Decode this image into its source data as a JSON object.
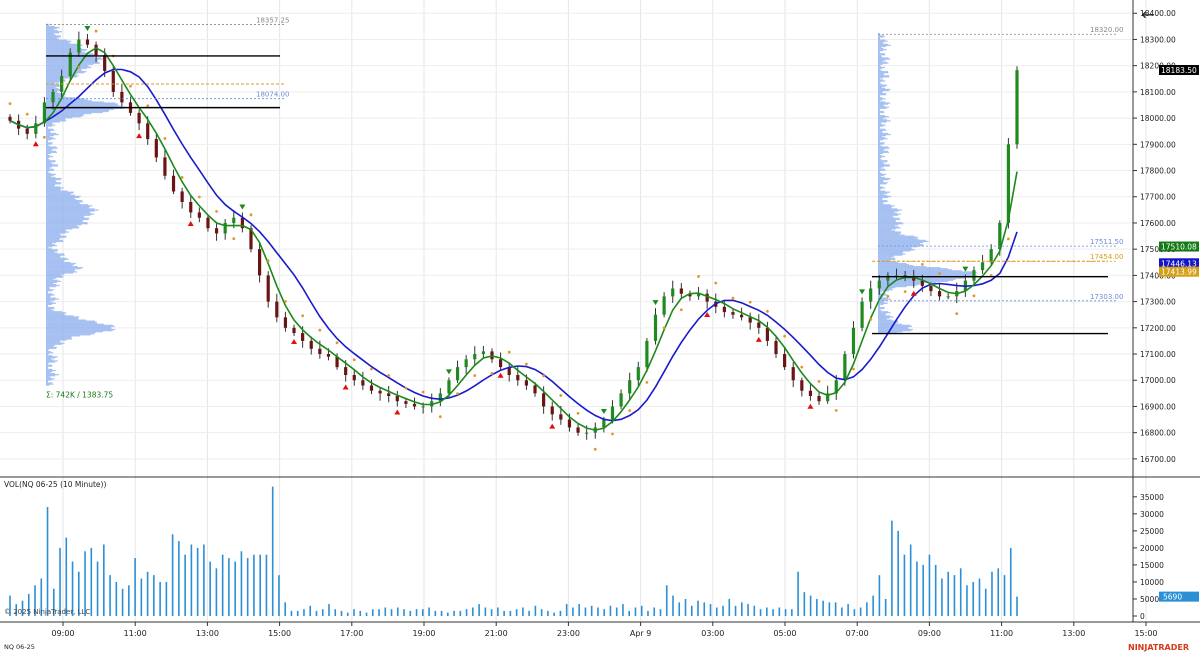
{
  "window": {
    "back_icon": "arrow-left-icon"
  },
  "footer": {
    "symbol": "NQ 06-25",
    "brand": "NINJATRADER",
    "copyright": "© 2025 NinjaTrader, LLC"
  },
  "volume_panel": {
    "title": "VOL(NQ 06-25 (10 Minute))",
    "last_volume": "5690"
  },
  "price_labels": {
    "last": "18183.50",
    "green": "17510.08",
    "blue": "17446.13",
    "orange": "17413.99"
  },
  "colors": {
    "up": "#1f8a1f",
    "down": "#6b1414",
    "ma_green": "#1a8a1a",
    "ma_blue": "#1a1acc",
    "psar": "#e0962a",
    "volume": "#2b8fd6",
    "profile": "#8fb0ee",
    "last_bg": "#000000",
    "green_bg": "#157a15",
    "blue_bg": "#1515c8",
    "orange_bg": "#d4a017"
  },
  "chart_data": [
    {
      "type": "candlestick",
      "title": "",
      "ylabel": "",
      "ylim": [
        16650,
        18420
      ],
      "y_ticks": [
        "18400.00",
        "18300.00",
        "18200.00",
        "18100.00",
        "18000.00",
        "17900.00",
        "17800.00",
        "17700.00",
        "17600.00",
        "17500.00",
        "17400.00",
        "17300.00",
        "17200.00",
        "17100.00",
        "17000.00",
        "16900.00",
        "16800.00",
        "16700.00"
      ],
      "x_ticks": [
        "09:00",
        "11:00",
        "13:00",
        "15:00",
        "17:00",
        "19:00",
        "21:00",
        "23:00",
        "Apr 9",
        "03:00",
        "05:00",
        "07:00",
        "09:00",
        "11:00",
        "13:00",
        "15:00"
      ],
      "profile_labels": [
        {
          "text": "18357.25",
          "value": 18357.25
        },
        {
          "text": "18074.00",
          "value": 18074.0
        },
        {
          "text": "17511.50",
          "value": 17511.5
        },
        {
          "text": "17454.00",
          "value": 17454.0
        },
        {
          "text": "17303.00",
          "value": 17303.0
        },
        {
          "text": "18320.00",
          "value": 18320.0
        }
      ],
      "profile_summary": "Σ: 742K / 1383.75",
      "key_lines": [
        18237,
        18040,
        17395,
        17178
      ],
      "series": [
        {
          "name": "",
          "close_path": [
            17990,
            17960,
            17940,
            17980,
            18060,
            18100,
            18160,
            18250,
            18300,
            18280,
            18240,
            18180,
            18100,
            18060,
            18020,
            17980,
            17920,
            17850,
            17780,
            17720,
            17680,
            17640,
            17620,
            17580,
            17560,
            17600,
            17620,
            17580,
            17500,
            17400,
            17300,
            17240,
            17200,
            17180,
            17150,
            17120,
            17100,
            17090,
            17050,
            17020,
            17000,
            16980,
            16960,
            16950,
            16940,
            16920,
            16910,
            16900,
            16900,
            16920,
            16950,
            17000,
            17050,
            17080,
            17100,
            17110,
            17080,
            17050,
            17020,
            17000,
            16980,
            16950,
            16900,
            16870,
            16850,
            16820,
            16800,
            16800,
            16820,
            16850,
            16900,
            16950,
            17000,
            17050,
            17150,
            17250,
            17320,
            17350,
            17330,
            17320,
            17330,
            17300,
            17280,
            17260,
            17250,
            17240,
            17220,
            17200,
            17150,
            17100,
            17050,
            17000,
            16960,
            16940,
            16920,
            16950,
            17000,
            17100,
            17200,
            17300,
            17350,
            17380,
            17400,
            17400,
            17390,
            17380,
            17360,
            17340,
            17320,
            17320,
            17340,
            17380,
            17420,
            17450,
            17500,
            17600,
            17900,
            18183
          ]
        }
      ]
    },
    {
      "type": "bar",
      "title": "VOL(NQ 06-25 (10 Minute))",
      "ylim": [
        0,
        37000
      ],
      "y_ticks": [
        "35000",
        "30000",
        "25000",
        "20000",
        "15000",
        "10000",
        "5000",
        "0"
      ],
      "values": [
        6000,
        3500,
        4500,
        6500,
        9000,
        11000,
        32000,
        8000,
        20000,
        23000,
        16000,
        13000,
        19000,
        20000,
        16000,
        21000,
        12000,
        10000,
        8000,
        9000,
        17000,
        11000,
        13000,
        12000,
        10000,
        10000,
        24000,
        22000,
        18000,
        21000,
        20000,
        21000,
        16000,
        14000,
        18000,
        17000,
        16000,
        19000,
        17000,
        18000,
        18000,
        18000,
        38000,
        12000,
        4000,
        1500,
        1500,
        2000,
        3000,
        1500,
        2000,
        3500,
        2000,
        1500,
        1000,
        2000,
        1500,
        1000,
        2000,
        2000,
        2500,
        2000,
        2500,
        2000,
        1500,
        2000,
        2000,
        2500,
        1500,
        1500,
        1000,
        1500,
        1500,
        2000,
        2500,
        3500,
        2500,
        2000,
        2500,
        1500,
        1500,
        2000,
        2500,
        1500,
        3000,
        2000,
        1500,
        1000,
        1500,
        3500,
        2500,
        3500,
        2500,
        3000,
        2500,
        2000,
        3000,
        2500,
        3500,
        1500,
        2500,
        3000,
        1500,
        2500,
        2000,
        9000,
        6000,
        4000,
        5000,
        3000,
        4500,
        4000,
        3500,
        2500,
        3000,
        5000,
        3000,
        4000,
        3500,
        3000,
        2000,
        2500,
        2000,
        2500,
        2000,
        2000,
        13000,
        7000,
        6000,
        5000,
        4500,
        4000,
        4000,
        2500,
        3500,
        2000,
        2500,
        4000,
        6000,
        12000,
        5000,
        28000,
        25000,
        18000,
        21000,
        16000,
        15000,
        18000,
        15000,
        11000,
        13000,
        12000,
        14000,
        9000,
        10000,
        11000,
        8000,
        13000,
        14000,
        12000,
        20000,
        5690
      ]
    }
  ]
}
